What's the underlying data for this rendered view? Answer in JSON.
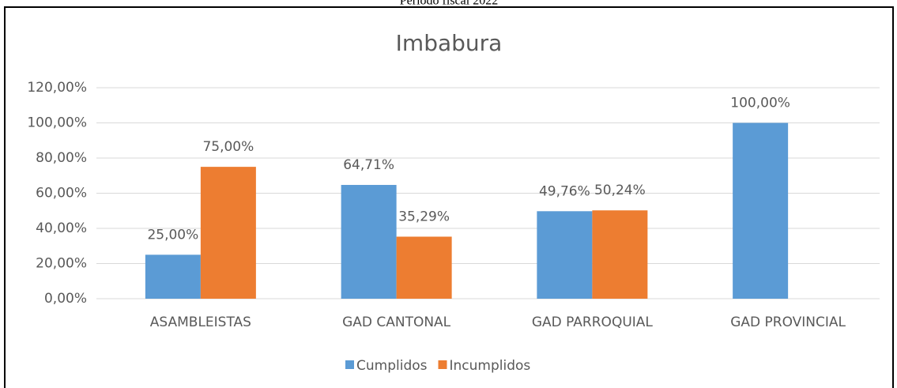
{
  "header": {
    "text": "Período fiscal 2022"
  },
  "chart_data": {
    "type": "bar",
    "title": "Imbabura",
    "categories": [
      "ASAMBLEISTAS",
      "GAD CANTONAL",
      "GAD PARROQUIAL",
      "GAD PROVINCIAL"
    ],
    "series": [
      {
        "name": "Cumplidos",
        "color": "#5b9bd5",
        "values": [
          25,
          64.71,
          49.76,
          100
        ],
        "value_labels": [
          "25,00%",
          "64,71%",
          "49,76%",
          "100,00%"
        ]
      },
      {
        "name": "Incumplidos",
        "color": "#ed7d31",
        "values": [
          75,
          35.29,
          50.24,
          null
        ],
        "value_labels": [
          "75,00%",
          "35,29%",
          "50,24%",
          null
        ]
      }
    ],
    "ylim": [
      0,
      120
    ],
    "yticks": [
      {
        "value": 0,
        "label": "0,00%"
      },
      {
        "value": 20,
        "label": "20,00%"
      },
      {
        "value": 40,
        "label": "40,00%"
      },
      {
        "value": 60,
        "label": "60,00%"
      },
      {
        "value": 80,
        "label": "80,00%"
      },
      {
        "value": 100,
        "label": "100,00%"
      },
      {
        "value": 120,
        "label": "120,00%"
      }
    ],
    "grid": true,
    "legend": "bottom"
  }
}
